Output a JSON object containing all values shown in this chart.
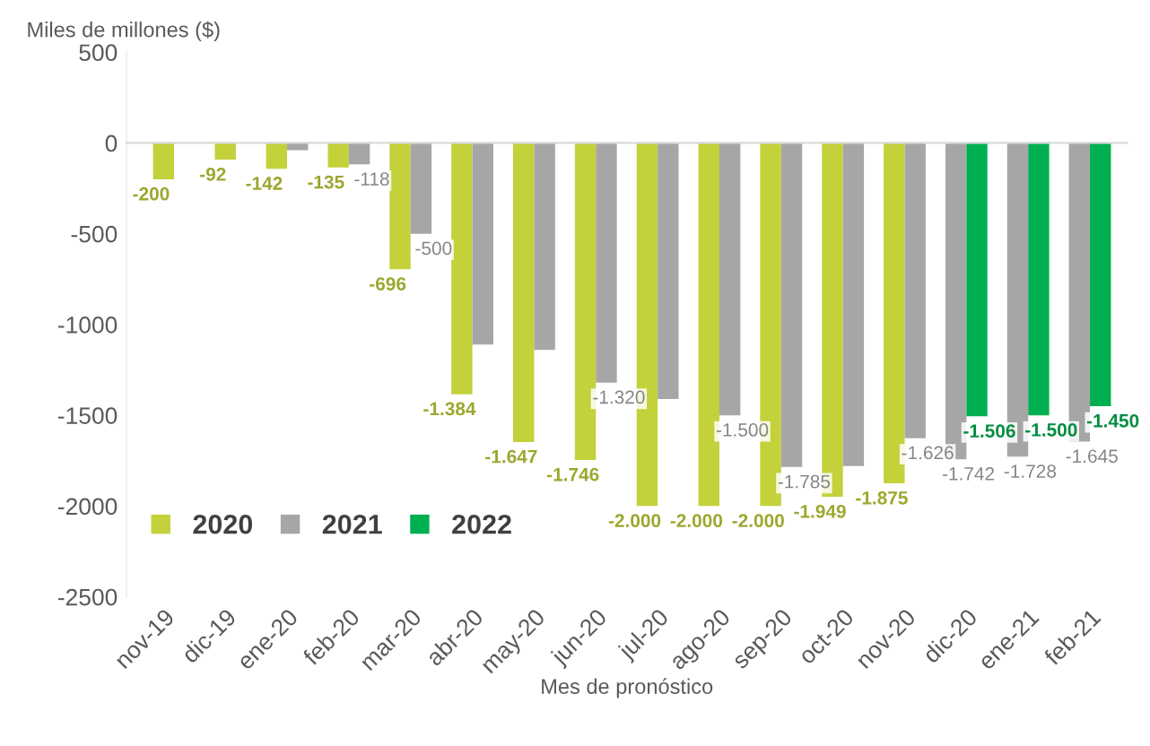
{
  "chart_data": {
    "type": "bar",
    "categories": [
      "nov-19",
      "dic-19",
      "ene-20",
      "feb-20",
      "mar-20",
      "abr-20",
      "may-20",
      "jun-20",
      "jul-20",
      "ago-20",
      "sep-20",
      "oct-20",
      "nov-20",
      "dic-20",
      "ene-21",
      "feb-21"
    ],
    "series": [
      {
        "name": "2020",
        "color": "#c3d13a",
        "values": [
          -200,
          -92,
          -142,
          -135,
          -696,
          -1384,
          -1647,
          -1746,
          -2000,
          -2000,
          -2000,
          -1949,
          -1875,
          null,
          null,
          null
        ],
        "value_labels": [
          "-200",
          "-92",
          "-142",
          "-135",
          "-696",
          "-1.384",
          "-1.647",
          "-1.746",
          "-2.000",
          "-2.000",
          "-2.000",
          "-1.949",
          "-1.875",
          null,
          null,
          null
        ]
      },
      {
        "name": "2021",
        "color": "#a6a6a6",
        "values": [
          null,
          null,
          -40,
          -118,
          -500,
          -1110,
          -1140,
          -1320,
          -1410,
          -1500,
          -1785,
          -1780,
          -1626,
          -1742,
          -1728,
          -1645
        ],
        "value_labels": [
          null,
          null,
          null,
          "-118",
          "-500",
          null,
          null,
          "-1.320",
          null,
          "-1.500",
          "-1.785",
          null,
          "-1.626",
          "-1.742",
          "-1.728",
          "-1.645"
        ]
      },
      {
        "name": "2022",
        "color": "#00b050",
        "values": [
          null,
          null,
          null,
          null,
          null,
          null,
          null,
          null,
          null,
          null,
          null,
          null,
          null,
          -1506,
          -1500,
          -1450
        ],
        "value_labels": [
          null,
          null,
          null,
          null,
          null,
          null,
          null,
          null,
          null,
          null,
          null,
          null,
          null,
          "-1.506",
          "-1.500",
          "-1.450"
        ]
      }
    ],
    "ylim": [
      -2500,
      500
    ],
    "yticks": [
      500,
      0,
      {
        "value": -500,
        "label": "-500"
      },
      {
        "value": -1000,
        "label": "-1000"
      },
      {
        "value": -1500,
        "label": "-1500"
      },
      {
        "value": -2000,
        "label": "-2000"
      },
      {
        "value": -2500,
        "label": "-2500"
      }
    ],
    "ylabel": "Miles de millones ($)",
    "xlabel": "Mes de pronóstico",
    "legend": "bottom left"
  }
}
